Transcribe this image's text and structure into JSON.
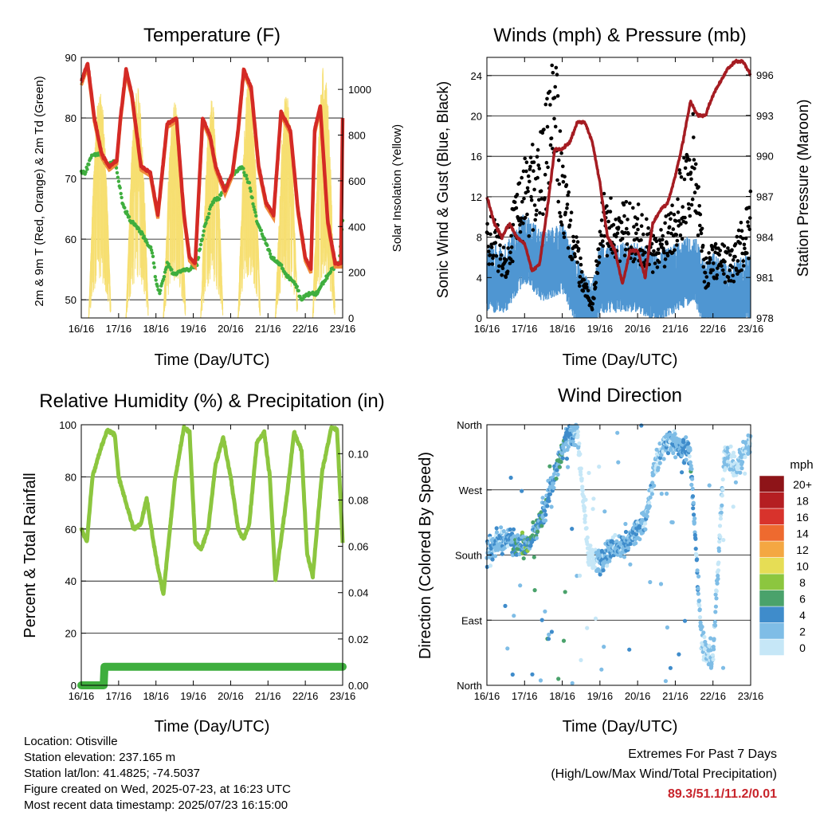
{
  "x_ticks": [
    "16/16",
    "17/16",
    "18/16",
    "19/16",
    "20/16",
    "21/16",
    "22/16",
    "23/16"
  ],
  "panels": {
    "temperature": {
      "title": "Temperature (F)",
      "xlabel": "Time (Day/UTC)",
      "ylabel_left": "2m & 9m T (Red, Orange) & 2m Td (Green)",
      "ylabel_right": "Solar Insolation (Yellow)",
      "left_ticks": [
        "50",
        "60",
        "70",
        "80",
        "90"
      ],
      "right_ticks": [
        "0",
        "200",
        "400",
        "600",
        "800",
        "1000"
      ]
    },
    "winds": {
      "title": "Winds (mph) & Pressure (mb)",
      "xlabel": "Time (Day/UTC)",
      "ylabel_left": "Sonic Wind & Gust (Blue, Black)",
      "ylabel_right": "Station Pressure (Maroon)",
      "left_ticks": [
        "0",
        "4",
        "8",
        "12",
        "16",
        "20",
        "24"
      ],
      "right_ticks": [
        "978",
        "981",
        "984",
        "987",
        "990",
        "993",
        "996"
      ]
    },
    "humidity": {
      "title": "Relative Humidity (%) & Precipitation (in)",
      "xlabel": "Time (Day/UTC)",
      "ylabel_left": "Percent & Total Rainfall",
      "left_ticks": [
        "0",
        "20",
        "40",
        "60",
        "80",
        "100"
      ],
      "right_ticks": [
        "0.00",
        "0.02",
        "0.04",
        "0.06",
        "0.08",
        "0.10"
      ]
    },
    "direction": {
      "title": "Wind Direction",
      "xlabel": "Time (Day/UTC)",
      "ylabel_left": "Direction (Colored By Speed)",
      "left_ticks": [
        "North",
        "East",
        "South",
        "West",
        "North"
      ],
      "legend_title": "mph",
      "legend_labels": [
        "0",
        "2",
        "4",
        "6",
        "8",
        "10",
        "12",
        "14",
        "16",
        "18",
        "20+"
      ],
      "legend_colors": [
        "#c6e7f7",
        "#7fbde6",
        "#3f8ccb",
        "#4aa26b",
        "#8cc63f",
        "#e6dd55",
        "#f4a742",
        "#ee6a2f",
        "#d8332c",
        "#b51e22",
        "#8e1418"
      ]
    }
  },
  "footer": {
    "location": "Location: Otisville",
    "elevation": "Station elevation: 237.165 m",
    "latlon": "Station lat/lon: 41.4825; -74.5037",
    "created": "Figure created on Wed, 2025-07-23, at 16:23 UTC",
    "recent": "Most recent data timestamp: 2025/07/23 16:15:00",
    "extremes_title": "Extremes For Past 7 Days",
    "extremes_desc": "(High/Low/Max Wind/Total Precipitation)",
    "extremes_value": "89.3/51.1/11.2/0.01"
  },
  "chart_data": [
    {
      "type": "line",
      "title": "Temperature (F)",
      "xlabel": "Time (Day/UTC)",
      "ylabel": "2m & 9m T (Red, Orange) & 2m Td (Green)",
      "ylabel_right": "Solar Insolation (Yellow)",
      "ylim": [
        47,
        90
      ],
      "ylim_right": [
        0,
        1140
      ],
      "x_range_days": [
        0,
        7
      ],
      "series": [
        {
          "name": "2m & 9m T",
          "color": "#d42a25",
          "x": [
            0,
            0.17,
            0.35,
            0.55,
            0.75,
            0.95,
            1.05,
            1.2,
            1.35,
            1.6,
            1.85,
            2.05,
            2.3,
            2.55,
            2.75,
            2.9,
            3.05,
            3.25,
            3.45,
            3.6,
            3.85,
            4.05,
            4.2,
            4.35,
            4.55,
            4.75,
            4.95,
            5.15,
            5.35,
            5.6,
            5.8,
            6.0,
            6.15,
            6.25,
            6.4,
            6.6,
            6.8,
            6.95,
            7.0
          ],
          "y": [
            86,
            89,
            80,
            74,
            72,
            73,
            80,
            88,
            84,
            72,
            71,
            64,
            79,
            80,
            64,
            57,
            56,
            80,
            77,
            72,
            68,
            71,
            78,
            88,
            85,
            72,
            66,
            64,
            81,
            78,
            65,
            57,
            55,
            78,
            82,
            63,
            56,
            56,
            80
          ]
        },
        {
          "name": "2m Td",
          "color": "#3fae3e",
          "x": [
            0,
            0.1,
            0.3,
            0.5,
            0.7,
            0.9,
            1.1,
            1.3,
            1.5,
            1.7,
            1.9,
            2.0,
            2.1,
            2.3,
            2.5,
            2.7,
            2.9,
            3.1,
            3.3,
            3.5,
            3.7,
            3.9,
            4.1,
            4.3,
            4.5,
            4.7,
            4.9,
            5.1,
            5.3,
            5.5,
            5.7,
            5.9,
            6.1,
            6.3,
            6.5,
            6.7,
            6.9,
            7.0
          ],
          "y": [
            71,
            71,
            74,
            74,
            72,
            73,
            66,
            63,
            62,
            60,
            58,
            53,
            51,
            56,
            54,
            55,
            55,
            56,
            62,
            66,
            67,
            69,
            71,
            72,
            69,
            63,
            60,
            57,
            56,
            54,
            53,
            50,
            51,
            51,
            53,
            55,
            56,
            63
          ]
        },
        {
          "name": "Solar Insolation",
          "color": "#f6df71",
          "day_peaks": [
            0.5,
            1.5,
            2.5,
            3.5,
            4.5,
            5.5,
            6.5
          ],
          "peak_values": [
            1000,
            1020,
            950,
            960,
            1060,
            1000,
            1110
          ]
        }
      ]
    },
    {
      "type": "scatter",
      "title": "Winds (mph) & Pressure (mb)",
      "xlabel": "Time (Day/UTC)",
      "ylabel": "Sonic Wind & Gust (Blue, Black)",
      "ylabel_right": "Station Pressure (Maroon)",
      "ylim": [
        0,
        25.8
      ],
      "ylim_right": [
        978,
        997.3
      ],
      "x_range_days": [
        0,
        7
      ],
      "series": [
        {
          "name": "Sonic Wind",
          "color": "#4f96d2",
          "x": [
            0,
            0.5,
            1,
            1.5,
            2,
            2.5,
            2.8,
            3,
            3.5,
            4,
            4.5,
            5,
            5.5,
            5.8,
            6,
            6.5,
            7
          ],
          "y": [
            4,
            4,
            7,
            5,
            6,
            1.5,
            0,
            4,
            4,
            4,
            3,
            4,
            5,
            2,
            3,
            2,
            3
          ]
        },
        {
          "name": "Gust",
          "color": "#000000",
          "x": [
            0,
            0.5,
            1,
            1.5,
            1.8,
            2,
            2.5,
            2.8,
            3,
            3.5,
            4,
            4.5,
            5,
            5.5,
            5.8,
            6,
            6.5,
            7
          ],
          "y": [
            10,
            7,
            14,
            17,
            24,
            14,
            5,
            1,
            11,
            10,
            10,
            7,
            12,
            18,
            5,
            7,
            6,
            11
          ]
        },
        {
          "name": "Station Pressure",
          "color": "#a51c22",
          "x": [
            0,
            0.2,
            0.4,
            0.6,
            0.8,
            1.0,
            1.2,
            1.4,
            1.6,
            1.8,
            2.0,
            2.2,
            2.4,
            2.6,
            2.8,
            3.0,
            3.2,
            3.4,
            3.6,
            3.8,
            4.0,
            4.2,
            4.4,
            4.6,
            4.8,
            5.0,
            5.2,
            5.4,
            5.6,
            5.8,
            6.0,
            6.2,
            6.4,
            6.6,
            6.8,
            7.0
          ],
          "y": [
            987,
            985,
            984,
            985,
            984,
            983.5,
            981.5,
            982,
            986,
            990.5,
            990.5,
            991,
            992.5,
            992.5,
            991,
            988,
            984,
            983,
            980.5,
            983,
            983,
            981,
            985,
            986,
            986.5,
            988.5,
            991,
            994,
            993,
            993,
            994.5,
            995.5,
            996.5,
            997,
            997,
            996
          ]
        }
      ]
    },
    {
      "type": "line",
      "title": "Relative Humidity (%) & Precipitation (in)",
      "xlabel": "Time (Day/UTC)",
      "ylabel": "Percent & Total Rainfall",
      "ylim": [
        0,
        100
      ],
      "ylim_right": [
        0,
        0.1125
      ],
      "x_range_days": [
        0,
        7
      ],
      "series": [
        {
          "name": "Relative Humidity",
          "color": "#8cc63f",
          "x": [
            0,
            0.15,
            0.3,
            0.5,
            0.7,
            0.9,
            1.0,
            1.2,
            1.4,
            1.6,
            1.75,
            1.9,
            2.05,
            2.2,
            2.5,
            2.75,
            2.9,
            3.05,
            3.2,
            3.4,
            3.6,
            3.8,
            4.0,
            4.2,
            4.35,
            4.5,
            4.7,
            4.9,
            5.05,
            5.2,
            5.5,
            5.7,
            5.9,
            6.05,
            6.2,
            6.45,
            6.7,
            6.85,
            7.0
          ],
          "y": [
            60,
            55,
            80,
            90,
            98,
            96,
            80,
            70,
            60,
            62,
            72,
            58,
            45,
            35,
            78,
            99,
            97,
            55,
            52,
            60,
            85,
            95,
            80,
            60,
            56,
            62,
            93,
            97,
            80,
            40,
            72,
            97,
            90,
            50,
            42,
            82,
            99,
            98,
            55
          ]
        },
        {
          "name": "Total Rainfall",
          "color": "#3fae3e",
          "x": [
            0,
            0.6,
            0.62,
            7.0
          ],
          "y": [
            0,
            0,
            0.008,
            0.008
          ]
        }
      ]
    },
    {
      "type": "scatter",
      "title": "Wind Direction",
      "xlabel": "Time (Day/UTC)",
      "ylabel": "Direction (Colored By Speed)",
      "y_categories": [
        "North",
        "East",
        "South",
        "West",
        "North"
      ],
      "ylim_degrees": [
        0,
        360
      ],
      "x_range_days": [
        0,
        7
      ],
      "colorbar_title": "mph",
      "colorbar_labels": [
        "0",
        "2",
        "4",
        "6",
        "8",
        "10",
        "12",
        "14",
        "16",
        "18",
        "20+"
      ],
      "series": [
        {
          "name": "Wind Direction",
          "x": [
            0,
            0.3,
            0.6,
            0.9,
            1.2,
            1.5,
            1.8,
            2.1,
            2.4,
            2.7,
            3.0,
            3.3,
            3.6,
            3.9,
            4.2,
            4.5,
            4.8,
            5.1,
            5.4,
            5.7,
            6.0,
            6.3,
            6.6,
            6.9
          ],
          "y": [
            180,
            200,
            200,
            190,
            200,
            240,
            290,
            340,
            350,
            180,
            170,
            190,
            190,
            210,
            230,
            310,
            340,
            330,
            320,
            60,
            40,
            320,
            300,
            330
          ]
        }
      ]
    }
  ]
}
